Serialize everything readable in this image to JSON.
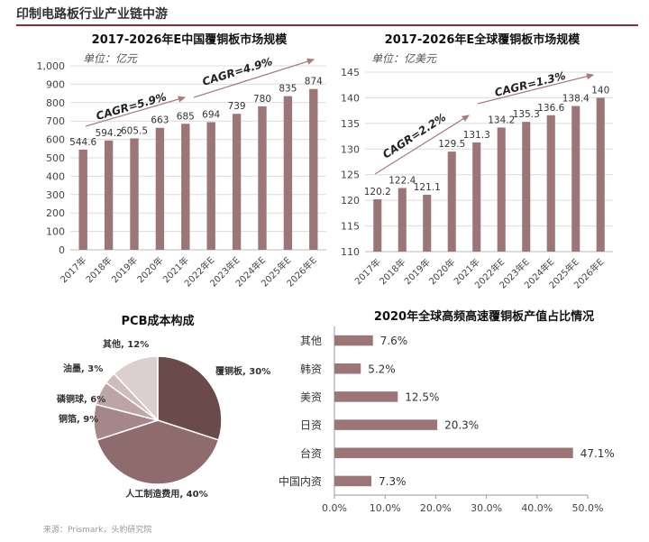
{
  "page": {
    "title": "印制电路板行业产业链中游",
    "source": "来源：Prismark，头豹研究院"
  },
  "colors": {
    "bar": "#9c7576",
    "arrow": "#a87b7c",
    "accent": "#8b2f2f"
  },
  "chart_data": [
    {
      "type": "bar",
      "title": "2017-2026年E中国覆铜板市场规模",
      "subtitle": "单位：亿元",
      "categories": [
        "2017年",
        "2018年",
        "2019年",
        "2020年",
        "2021年",
        "2022年E",
        "2023年E",
        "2024年E",
        "2025年E",
        "2026年E"
      ],
      "values": [
        544.6,
        594.2,
        605.5,
        663,
        685,
        694,
        739,
        780,
        835,
        874
      ],
      "value_labels": [
        "544.6",
        "594.2",
        "605.5",
        "663",
        "685",
        "694",
        "739",
        "780",
        "835",
        "874"
      ],
      "ylim": [
        0,
        1000
      ],
      "yticks": [
        "0",
        "100",
        "200",
        "300",
        "400",
        "500",
        "600",
        "700",
        "800",
        "900",
        "1,000"
      ],
      "annotations": [
        "CAGR=5.9%",
        "CAGR=4.9%"
      ]
    },
    {
      "type": "bar",
      "title": "2017-2026年E全球覆铜板市场规模",
      "subtitle": "单位：亿美元",
      "categories": [
        "2017年",
        "2018年",
        "2019年",
        "2020年",
        "2021年",
        "2022年E",
        "2023年E",
        "2024年E",
        "2025年E",
        "2026年E"
      ],
      "values": [
        120.2,
        122.4,
        121.1,
        129.5,
        131.3,
        134.2,
        135.3,
        136.6,
        138.4,
        140
      ],
      "value_labels": [
        "120.2",
        "122.4",
        "121.1",
        "129.5",
        "131.3",
        "134.2",
        "135.3",
        "136.6",
        "138.4",
        "140"
      ],
      "ylim": [
        110,
        145
      ],
      "yticks": [
        "110",
        "115",
        "120",
        "125",
        "130",
        "135",
        "140",
        "145"
      ],
      "annotations": [
        "CAGR=2.2%",
        "CAGR=1.3%"
      ]
    },
    {
      "type": "pie",
      "title": "PCB成本构成",
      "slices": [
        {
          "label": "覆铜板, 30%",
          "value": 30,
          "color": "#6b4a4b"
        },
        {
          "label": "人工制造费用, 40%",
          "value": 40,
          "color": "#8e6c6d"
        },
        {
          "label": "铜箔, 9%",
          "value": 9,
          "color": "#a5878a"
        },
        {
          "label": "磷铜球, 6%",
          "value": 6,
          "color": "#bda5a6"
        },
        {
          "label": "油墨, 3%",
          "value": 3,
          "color": "#cfbcbd"
        },
        {
          "label": "其他, 12%",
          "value": 12,
          "color": "#dccfd0"
        }
      ]
    },
    {
      "type": "bar",
      "orientation": "horizontal",
      "title": "2020年全球高频高速覆铜板产值占比情况",
      "categories": [
        "其他",
        "韩资",
        "美资",
        "日资",
        "台资",
        "中国内资"
      ],
      "values": [
        7.6,
        5.2,
        12.5,
        20.3,
        47.1,
        7.3
      ],
      "value_labels": [
        "7.6%",
        "5.2%",
        "12.5%",
        "20.3%",
        "47.1%",
        "7.3%"
      ],
      "xlim": [
        0,
        50
      ],
      "xticks": [
        "0.0%",
        "10.0%",
        "20.0%",
        "30.0%",
        "40.0%",
        "50.0%"
      ]
    }
  ]
}
